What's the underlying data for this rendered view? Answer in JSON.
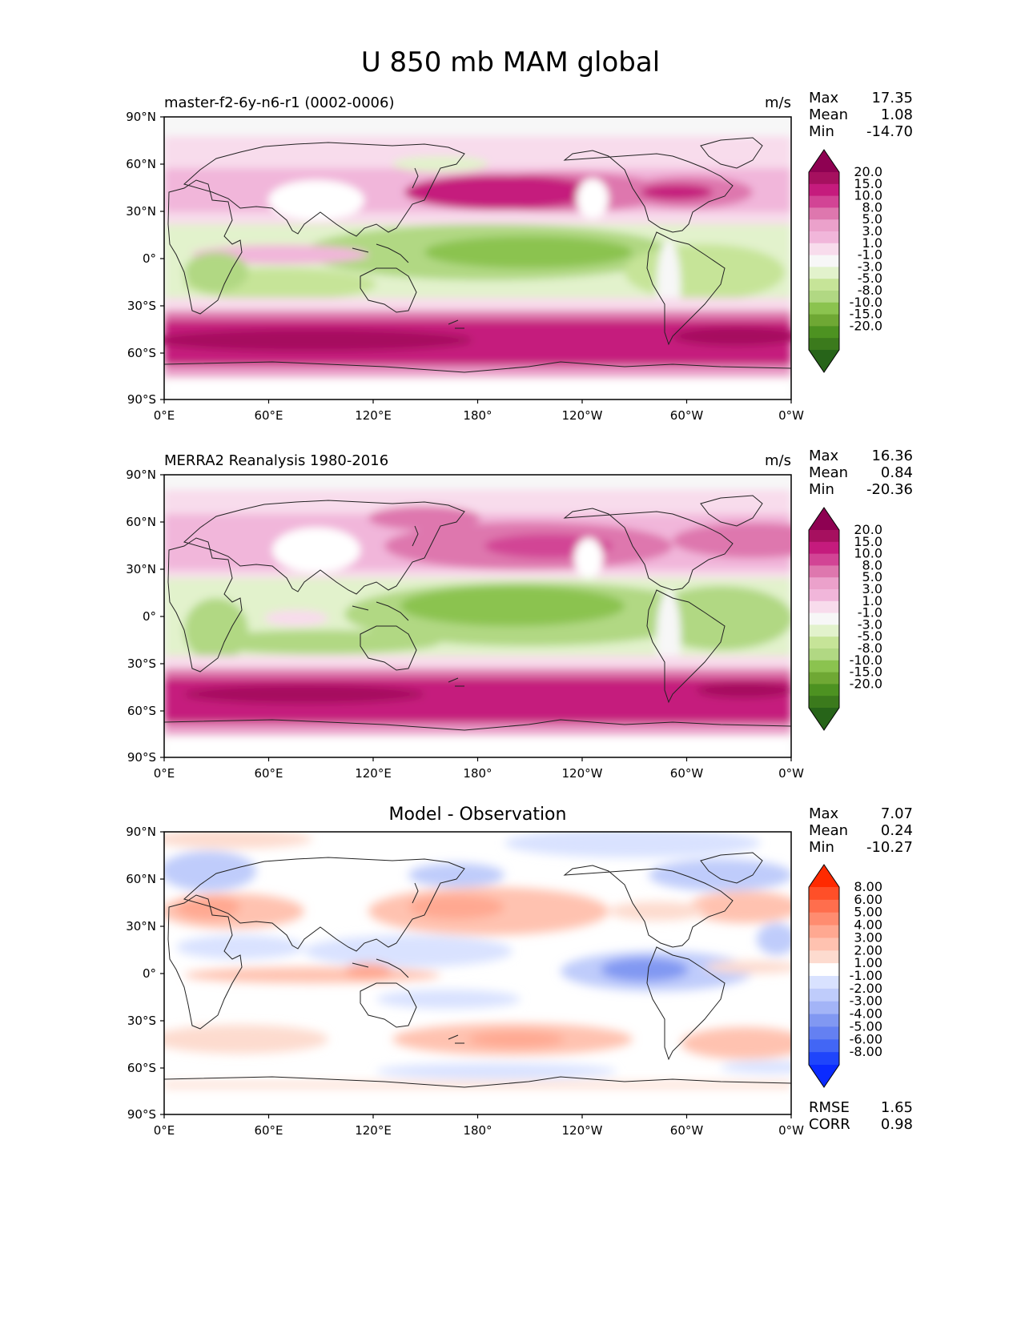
{
  "figure_title": "U 850 mb MAM global",
  "panels": [
    {
      "title": "master-f2-6y-n6-r1 (0002-0006)",
      "units": "m/s",
      "stats": [
        {
          "label": "Max",
          "value": "17.35"
        },
        {
          "label": "Mean",
          "value": "1.08"
        },
        {
          "label": "Min",
          "value": "-14.70"
        }
      ]
    },
    {
      "title": "MERRA2 Reanalysis 1980-2016",
      "units": "m/s",
      "stats": [
        {
          "label": "Max",
          "value": "16.36"
        },
        {
          "label": "Mean",
          "value": "0.84"
        },
        {
          "label": "Min",
          "value": "-20.36"
        }
      ]
    },
    {
      "title": "Model - Observation",
      "units": "",
      "stats": [
        {
          "label": "Max",
          "value": "7.07"
        },
        {
          "label": "Mean",
          "value": "0.24"
        },
        {
          "label": "Min",
          "value": "-10.27"
        }
      ],
      "metrics": [
        {
          "label": "RMSE",
          "value": "1.65"
        },
        {
          "label": "CORR",
          "value": "0.98"
        }
      ]
    }
  ],
  "axis": {
    "lon_ticks": [
      "0°E",
      "60°E",
      "120°E",
      "180°",
      "120°W",
      "60°W",
      "0°W"
    ],
    "lat_ticks": [
      "90°N",
      "60°N",
      "30°N",
      "0°",
      "30°S",
      "60°S",
      "90°S"
    ]
  },
  "colorbars": {
    "field": {
      "labels": [
        "20.0",
        "15.0",
        "10.0",
        "8.0",
        "5.0",
        "3.0",
        "1.0",
        "-1.0",
        "-3.0",
        "-5.0",
        "-8.0",
        "-10.0",
        "-15.0",
        "-20.0"
      ],
      "colors": [
        "#8e0152",
        "#a6105f",
        "#c51b7d",
        "#d24495",
        "#de77ae",
        "#eba1cb",
        "#f1b6da",
        "#f8dcec",
        "#f7f7f7",
        "#e2f2cc",
        "#c6e498",
        "#b1d883",
        "#8bc34f",
        "#6fa834",
        "#4d9221",
        "#3b7a1c",
        "#276419"
      ]
    },
    "diff": {
      "labels": [
        "8.00",
        "6.00",
        "5.00",
        "4.00",
        "3.00",
        "2.00",
        "1.00",
        "-1.00",
        "-2.00",
        "-3.00",
        "-4.00",
        "-5.00",
        "-6.00",
        "-8.00"
      ],
      "colors": [
        "#ff2a00",
        "#ff4f28",
        "#ff6e4d",
        "#ff8c70",
        "#ffa891",
        "#ffc2b0",
        "#fddbcf",
        "#ffffff",
        "#d9e2ff",
        "#bfccfb",
        "#a3b4f7",
        "#8198f2",
        "#6480f2",
        "#4266f5",
        "#1f45fb",
        "#0b2bff"
      ]
    }
  },
  "chart_data": [
    {
      "type": "heatmap",
      "title": "master-f2-6y-n6-r1 (0002-0006)",
      "units": "m/s",
      "x_ticks": [
        "0°E",
        "60°E",
        "120°E",
        "180°",
        "120°W",
        "60°W",
        "0°W"
      ],
      "y_ticks": [
        "90°N",
        "60°N",
        "30°N",
        "0°",
        "30°S",
        "60°S",
        "90°S"
      ],
      "xlim_deg_east": [
        0,
        360
      ],
      "ylim_deg": [
        -90,
        90
      ],
      "levels": [
        -20.0,
        -15.0,
        -10.0,
        -8.0,
        -5.0,
        -3.0,
        -1.0,
        1.0,
        3.0,
        5.0,
        8.0,
        10.0,
        15.0,
        20.0
      ],
      "max": 17.35,
      "mean": 1.08,
      "min": -14.7,
      "features": [
        {
          "label": "southern westerly jet",
          "lat_range": [
            -60,
            -40
          ],
          "lon_range": [
            0,
            360
          ],
          "u": 15
        },
        {
          "label": "north pacific jet",
          "lat_range": [
            30,
            50
          ],
          "lon_range": [
            130,
            210
          ],
          "u": 12
        },
        {
          "label": "north atlantic jet",
          "lat_range": [
            30,
            50
          ],
          "lon_range": [
            280,
            340
          ],
          "u": 11
        },
        {
          "label": "tropical easterlies",
          "lat_range": [
            -15,
            20
          ],
          "lon_range": [
            130,
            260
          ],
          "u": -10
        }
      ]
    },
    {
      "type": "heatmap",
      "title": "MERRA2 Reanalysis 1980-2016",
      "units": "m/s",
      "x_ticks": [
        "0°E",
        "60°E",
        "120°E",
        "180°",
        "120°W",
        "60°W",
        "0°W"
      ],
      "y_ticks": [
        "90°N",
        "60°N",
        "30°N",
        "0°",
        "30°S",
        "60°S",
        "90°S"
      ],
      "xlim_deg_east": [
        0,
        360
      ],
      "ylim_deg": [
        -90,
        90
      ],
      "levels": [
        -20.0,
        -15.0,
        -10.0,
        -8.0,
        -5.0,
        -3.0,
        -1.0,
        1.0,
        3.0,
        5.0,
        8.0,
        10.0,
        15.0,
        20.0
      ],
      "max": 16.36,
      "mean": 0.84,
      "min": -20.36,
      "features": [
        {
          "label": "southern westerly jet",
          "lat_range": [
            -60,
            -40
          ],
          "lon_range": [
            0,
            360
          ],
          "u": 14
        },
        {
          "label": "north pacific jet",
          "lat_range": [
            30,
            50
          ],
          "lon_range": [
            130,
            210
          ],
          "u": 9
        },
        {
          "label": "north atlantic jet",
          "lat_range": [
            30,
            50
          ],
          "lon_range": [
            280,
            340
          ],
          "u": 8
        },
        {
          "label": "tropical easterlies",
          "lat_range": [
            -15,
            20
          ],
          "lon_range": [
            130,
            260
          ],
          "u": -8
        }
      ]
    },
    {
      "type": "heatmap",
      "title": "Model - Observation",
      "x_ticks": [
        "0°E",
        "60°E",
        "120°E",
        "180°",
        "120°W",
        "60°W",
        "0°W"
      ],
      "y_ticks": [
        "90°N",
        "60°N",
        "30°N",
        "0°",
        "30°S",
        "60°S",
        "90°S"
      ],
      "xlim_deg_east": [
        0,
        360
      ],
      "ylim_deg": [
        -90,
        90
      ],
      "levels": [
        -8.0,
        -6.0,
        -5.0,
        -4.0,
        -3.0,
        -2.0,
        -1.0,
        1.0,
        2.0,
        3.0,
        4.0,
        5.0,
        6.0,
        8.0
      ],
      "max": 7.07,
      "mean": 0.24,
      "min": -10.27,
      "rmse": 1.65,
      "corr": 0.98,
      "features": [
        {
          "label": "north pacific positive bias",
          "lat_range": [
            30,
            50
          ],
          "lon_range": [
            120,
            210
          ],
          "u": 3
        },
        {
          "label": "north atlantic positive bias",
          "lat_range": [
            30,
            50
          ],
          "lon_range": [
            290,
            360
          ],
          "u": 2.5
        },
        {
          "label": "southern ocean positive bias",
          "lat_range": [
            -55,
            -40
          ],
          "lon_range": [
            0,
            360
          ],
          "u": 2
        },
        {
          "label": "tropical america negative bias",
          "lat_range": [
            -10,
            10
          ],
          "lon_range": [
            270,
            310
          ],
          "u": -5
        }
      ]
    }
  ]
}
